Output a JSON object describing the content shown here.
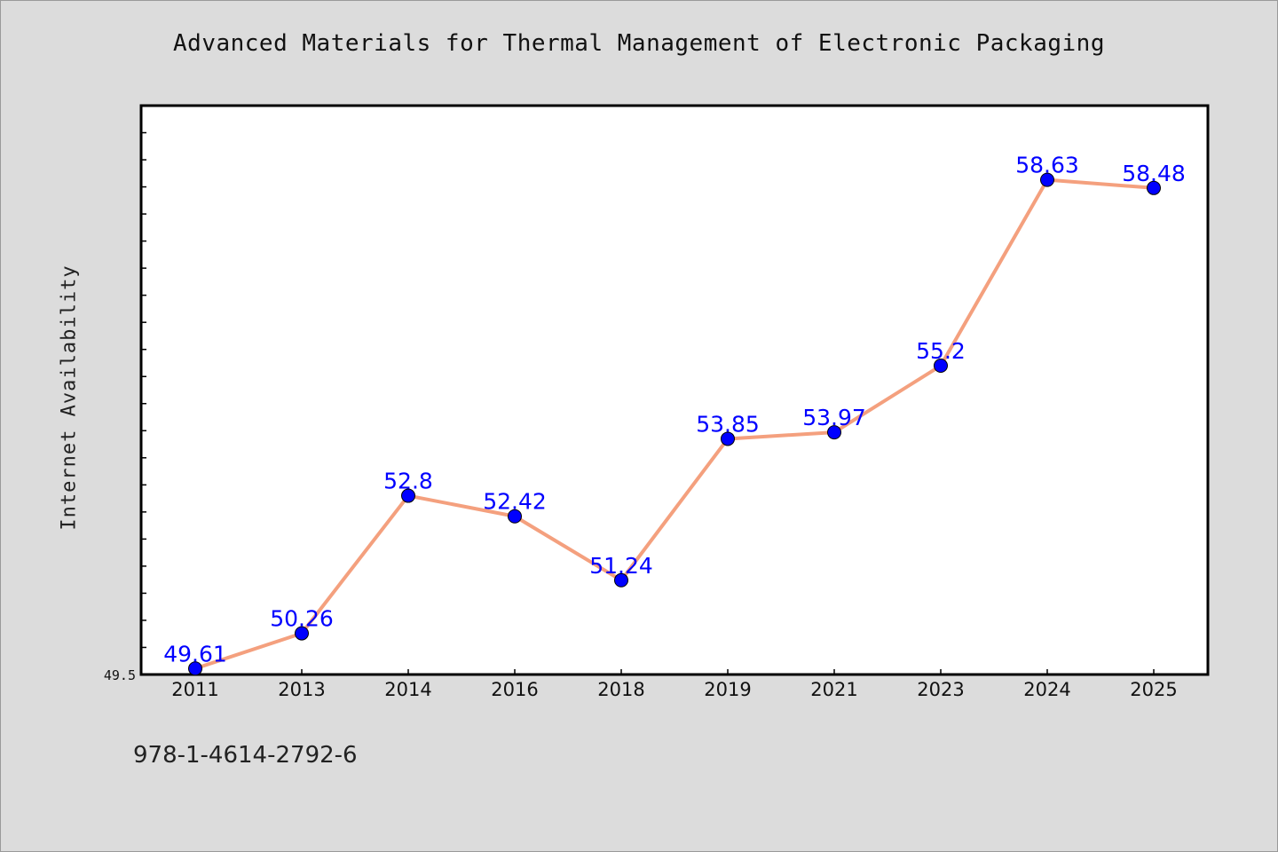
{
  "chart_data": {
    "type": "line",
    "title": "Advanced Materials for Thermal Management of Electronic Packaging",
    "xlabel": "",
    "ylabel": "Internet Availability",
    "categories": [
      "2011",
      "2013",
      "2014",
      "2016",
      "2018",
      "2019",
      "2021",
      "2023",
      "2024",
      "2025"
    ],
    "series": [
      {
        "values": [
          49.61,
          50.26,
          52.8,
          52.42,
          51.24,
          53.85,
          53.97,
          55.2,
          58.63,
          58.48
        ],
        "data_labels": [
          "49.61",
          "50.26",
          "52.8",
          "52.42",
          "51.24",
          "53.85",
          "53.97",
          "55.2",
          "58.63",
          "58.48"
        ],
        "line_color": "#f4a07e",
        "marker_color": "#0000ff",
        "label_color": "#0000ff"
      }
    ],
    "ylim": [
      49.5,
      60.0
    ],
    "y_tick_labels": [
      "49.5"
    ],
    "grid": false,
    "legend": "none"
  },
  "footnote": "978-1-4614-2792-6"
}
